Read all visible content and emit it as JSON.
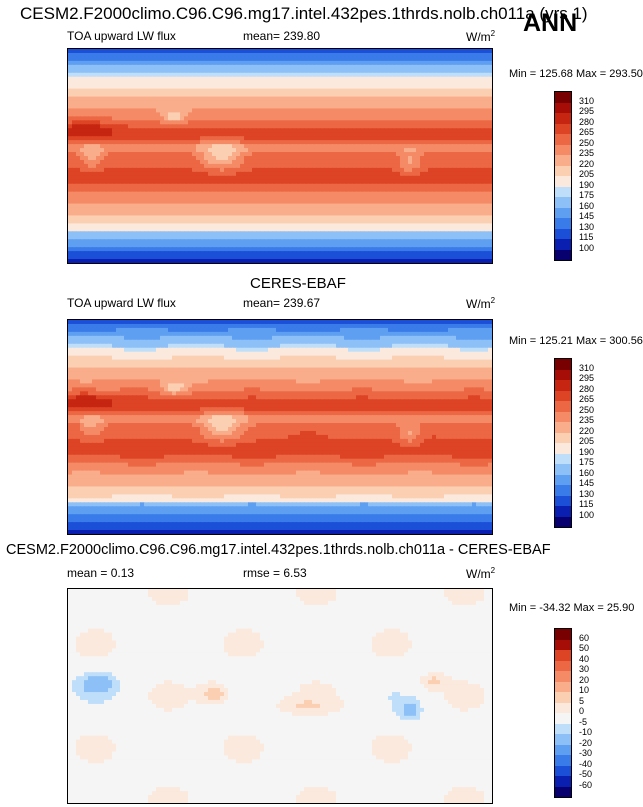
{
  "header": {
    "title": "CESM2.F2000climo.C96.C96.mg17.intel.432pes.1thrds.nolb.ch011a (yrs 1)",
    "season": "ANN"
  },
  "colors": {
    "main_scale": [
      "#08006e",
      "#0a1fb0",
      "#1b4fd8",
      "#3a7bea",
      "#5f9ff1",
      "#8cc0f6",
      "#bedefa",
      "#fbe9dd",
      "#fbcfb2",
      "#f9ad8a",
      "#f58b66",
      "#ec6744",
      "#dd4325",
      "#c52511",
      "#a70d07",
      "#790000"
    ],
    "diff_scale": [
      "#08006e",
      "#0a1fb0",
      "#1b4fd8",
      "#3a7bea",
      "#5f9ff1",
      "#8cc0f6",
      "#bedefa",
      "#f5f5f5",
      "#fbe9dd",
      "#fbcfb2",
      "#f9ad8a",
      "#f58b66",
      "#ec6744",
      "#dd4325",
      "#a70d07",
      "#790000"
    ]
  },
  "chart_data": [
    {
      "type": "heatmap",
      "panel": "model",
      "variable": "TOA upward LW flux",
      "mean_label": "mean= 239.80",
      "units": "W/m",
      "units_exp": "2",
      "min_max": "Min = 125.68 Max = 293.50",
      "colorbar_levels": [
        "310",
        "295",
        "280",
        "265",
        "250",
        "235",
        "220",
        "205",
        "190",
        "175",
        "160",
        "145",
        "130",
        "115",
        "100"
      ],
      "mean": 239.8,
      "min": 125.68,
      "max": 293.5
    },
    {
      "type": "heatmap",
      "panel": "obs",
      "title": "CERES-EBAF",
      "variable": "TOA upward LW flux",
      "mean_label": "mean= 239.67",
      "units": "W/m",
      "units_exp": "2",
      "min_max": "Min = 125.21 Max = 300.56",
      "colorbar_levels": [
        "310",
        "295",
        "280",
        "265",
        "250",
        "235",
        "220",
        "205",
        "190",
        "175",
        "160",
        "145",
        "130",
        "115",
        "100"
      ],
      "mean": 239.67,
      "min": 125.21,
      "max": 300.56
    },
    {
      "type": "heatmap",
      "panel": "diff",
      "title": "CESM2.F2000climo.C96.C96.mg17.intel.432pes.1thrds.nolb.ch011a - CERES-EBAF",
      "mean_label": "mean =   0.13",
      "rmse_label": "rmse =   6.53",
      "units": "W/m",
      "units_exp": "2",
      "min_max": "Min = -34.32 Max =  25.90",
      "colorbar_levels": [
        "60",
        "50",
        "40",
        "30",
        "20",
        "10",
        "5",
        "0",
        "-5",
        "-10",
        "-20",
        "-30",
        "-40",
        "-50",
        "-60"
      ],
      "mean": 0.13,
      "rmse": 6.53,
      "min": -34.32,
      "max": 25.9
    }
  ]
}
